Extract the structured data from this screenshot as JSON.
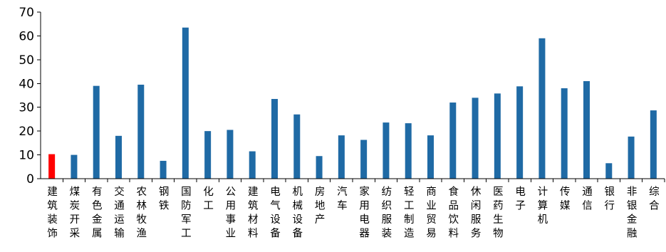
{
  "chart_data": {
    "type": "bar",
    "categories": [
      "建筑装饰",
      "煤炭开采",
      "有色金属",
      "交通运输",
      "农林牧渔",
      "钢铁",
      "国防军工",
      "化工",
      "公用事业",
      "建筑材料",
      "电气设备",
      "机械设备",
      "房地产",
      "汽车",
      "家用电器",
      "纺织服装",
      "轻工制造",
      "商业贸易",
      "食品饮料",
      "休闲服务",
      "医药生物",
      "电子",
      "计算机",
      "传媒",
      "通信",
      "银行",
      "非银金融",
      "综合"
    ],
    "values": [
      10.3,
      10,
      39,
      18,
      39.5,
      7.5,
      63.5,
      20,
      20.5,
      11.5,
      33.5,
      27,
      9.5,
      18.2,
      16.3,
      23.6,
      23.3,
      18.2,
      32,
      34,
      35.8,
      38.8,
      59,
      38,
      41,
      6.5,
      17.7,
      28.7
    ],
    "bar_colors": [
      "#ff0000",
      "#1f6aa5",
      "#1f6aa5",
      "#1f6aa5",
      "#1f6aa5",
      "#1f6aa5",
      "#1f6aa5",
      "#1f6aa5",
      "#1f6aa5",
      "#1f6aa5",
      "#1f6aa5",
      "#1f6aa5",
      "#1f6aa5",
      "#1f6aa5",
      "#1f6aa5",
      "#1f6aa5",
      "#1f6aa5",
      "#1f6aa5",
      "#1f6aa5",
      "#1f6aa5",
      "#1f6aa5",
      "#1f6aa5",
      "#1f6aa5",
      "#1f6aa5",
      "#1f6aa5",
      "#1f6aa5",
      "#1f6aa5",
      "#1f6aa5"
    ],
    "series_color": "#1f6aa5",
    "highlight_color": "#ff0000",
    "title": "",
    "xlabel": "",
    "ylabel": "",
    "ylim": [
      0,
      70
    ],
    "yticks": [
      0,
      10,
      20,
      30,
      40,
      50,
      60,
      70
    ],
    "grid": false,
    "legend": "none"
  }
}
